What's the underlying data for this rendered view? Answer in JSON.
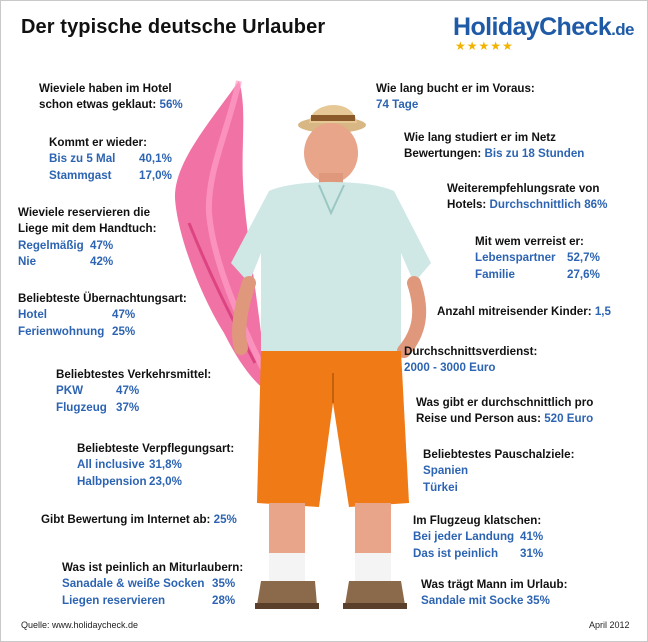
{
  "title": "Der typische deutsche Urlauber",
  "logo": {
    "text": "HolidayCheck",
    "tld": ".de",
    "stars": 5
  },
  "left": [
    {
      "id": "geklaut",
      "q": [
        "Wieviele haben im Hotel",
        "schon etwas geklaut:"
      ],
      "v": "56%"
    },
    {
      "id": "wieder",
      "q": [
        "Kommt er wieder:"
      ],
      "rows": [
        [
          "Bis zu 5 Mal",
          "40,1%"
        ],
        [
          "Stammgast",
          "17,0%"
        ]
      ]
    },
    {
      "id": "liege",
      "q": [
        "Wieviele reservieren die",
        "Liege mit dem Handtuch:"
      ],
      "rows": [
        [
          "Regelmäßig",
          "47%"
        ],
        [
          "Nie",
          "42%"
        ]
      ]
    },
    {
      "id": "uebernachtung",
      "q": [
        "Beliebteste Übernachtungsart:"
      ],
      "rows": [
        [
          "Hotel",
          "47%"
        ],
        [
          "Ferienwohnung",
          "25%"
        ]
      ]
    },
    {
      "id": "verkehr",
      "q": [
        "Beliebtestes Verkehrsmittel:"
      ],
      "rows": [
        [
          "PKW",
          "47%"
        ],
        [
          "Flugzeug",
          "37%"
        ]
      ]
    },
    {
      "id": "verpflegung",
      "q": [
        "Beliebteste Verpflegungsart:"
      ],
      "rows": [
        [
          "All inclusive",
          "31,8%"
        ],
        [
          "Halbpension",
          "23,0%"
        ]
      ]
    },
    {
      "id": "bewertung",
      "q": [
        "Gibt Bewertung im Internet ab:"
      ],
      "v": "25%"
    },
    {
      "id": "peinlich",
      "q": [
        "Was ist peinlich an Miturlaubern:"
      ],
      "rows": [
        [
          "Sanadale & weiße Socken",
          "35%"
        ],
        [
          "Liegen reservieren",
          "28%"
        ]
      ]
    }
  ],
  "right": [
    {
      "id": "voraus",
      "q": [
        "Wie lang bucht er im Voraus:"
      ],
      "v": "74 Tage"
    },
    {
      "id": "netz",
      "q": [
        "Wie lang studiert er im Netz",
        "Bewertungen:"
      ],
      "v": "Bis zu 18 Stunden"
    },
    {
      "id": "weiterempfehlung",
      "q": [
        "Weiterempfehlungsrate von",
        "Hotels:"
      ],
      "v": "Durchschnittlich 86%"
    },
    {
      "id": "verreist",
      "q": [
        "Mit wem verreist er:"
      ],
      "rows": [
        [
          "Lebenspartner",
          "52,7%"
        ],
        [
          "Familie",
          "27,6%"
        ]
      ]
    },
    {
      "id": "kinder",
      "q": [
        "Anzahl mitreisender Kinder:"
      ],
      "v": "1,5"
    },
    {
      "id": "verdienst",
      "q": [
        "Durchschnittsverdienst:"
      ],
      "v2": "2000 - 3000 Euro"
    },
    {
      "id": "ausgaben",
      "q": [
        "Was gibt er durchschnittlich pro",
        "Reise und Person aus:"
      ],
      "v": "520 Euro"
    },
    {
      "id": "pauschal",
      "q": [
        "Beliebtestes Pauschalziele:"
      ],
      "rows": [
        [
          "Spanien",
          ""
        ],
        [
          "Türkei",
          ""
        ]
      ]
    },
    {
      "id": "klatschen",
      "q": [
        "Im Flugzeug klatschen:"
      ],
      "rows": [
        [
          "Bei jeder Landung",
          "41%"
        ],
        [
          "Das ist peinlich",
          "31%"
        ]
      ]
    },
    {
      "id": "mann",
      "q": [
        "Was trägt Mann im Urlaub:"
      ],
      "v2": "Sandale mit Socke 35%"
    }
  ],
  "footer": {
    "source": "Quelle: www.holidaycheck.de",
    "date": "April 2012"
  },
  "colors": {
    "accent": "#2d64b2",
    "logo": "#1f5aa6",
    "star": "#f2b300"
  }
}
